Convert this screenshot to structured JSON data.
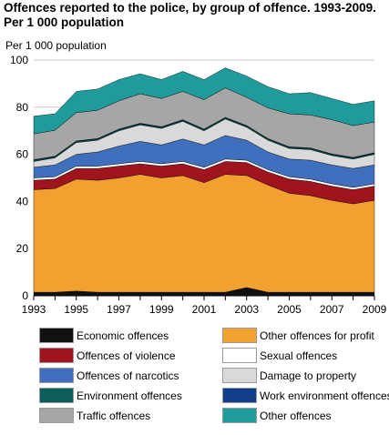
{
  "title_line1": "Offences reported to the police, by group of offence. 1993-2009.",
  "title_line2": "Per 1 000 population",
  "unit_label": "Per 1 000 population",
  "chart_data": {
    "type": "area",
    "stacked": true,
    "x": [
      1993,
      1994,
      1995,
      1996,
      1997,
      1998,
      1999,
      2000,
      2001,
      2002,
      2003,
      2004,
      2005,
      2006,
      2007,
      2008,
      2009
    ],
    "x_tick_labels": [
      "1993",
      "1995",
      "1997",
      "1999",
      "2001",
      "2003",
      "2005",
      "2007",
      "2009"
    ],
    "ylim": [
      0,
      100
    ],
    "y_ticks": [
      0,
      20,
      40,
      60,
      80,
      100
    ],
    "grid": true,
    "series": [
      {
        "name": "Economic offences",
        "color": "#111111",
        "values": [
          1.5,
          1.5,
          2,
          1.5,
          1.5,
          1.5,
          1.5,
          1.5,
          1.5,
          1.5,
          3.5,
          1.5,
          1.5,
          1.5,
          1.5,
          1.5,
          1.5
        ]
      },
      {
        "name": "Other offences for profit",
        "color": "#f2a131",
        "values": [
          43.5,
          44,
          47.5,
          47.5,
          48.5,
          50,
          48.5,
          49.5,
          46.5,
          50,
          47.5,
          45.5,
          42,
          41,
          39,
          37.5,
          39
        ]
      },
      {
        "name": "Offences of violence",
        "color": "#a0141e",
        "values": [
          4,
          4,
          4.5,
          5,
          5,
          4.5,
          5,
          5,
          5.5,
          5.5,
          5.5,
          5.5,
          6,
          6,
          6,
          6,
          6
        ]
      },
      {
        "name": "Sexual offences",
        "color": "#ffffff",
        "values": [
          1,
          1,
          1,
          1,
          1,
          1,
          1,
          1,
          1,
          1,
          1,
          1,
          1,
          1,
          1,
          1,
          1
        ]
      },
      {
        "name": "Offences of narcotics",
        "color": "#3f6fbd",
        "values": [
          4.5,
          5,
          5,
          6,
          7.5,
          8.5,
          8,
          9.5,
          9.5,
          10,
          8.5,
          7.5,
          7.5,
          8,
          8,
          8,
          8
        ]
      },
      {
        "name": "Damage to property",
        "color": "#d9d9d9",
        "values": [
          2.5,
          3,
          5,
          5,
          6.5,
          7,
          7,
          7.5,
          6,
          7,
          5.5,
          5,
          4.5,
          4.5,
          4,
          4,
          4.5
        ]
      },
      {
        "name": "Environment offences",
        "color": "#0c5e5a",
        "values": [
          0.5,
          0.5,
          0.5,
          0.5,
          0.5,
          0.5,
          0.5,
          0.5,
          0.5,
          0.5,
          0.5,
          0.5,
          0.5,
          0.5,
          0.5,
          0.5,
          0.5
        ]
      },
      {
        "name": "Work environment offences",
        "color": "#123f8c",
        "values": [
          0.2,
          0.2,
          0.2,
          0.2,
          0.2,
          0.2,
          0.2,
          0.2,
          0.2,
          0.2,
          0.2,
          0.2,
          0.2,
          0.2,
          0.2,
          0.2,
          0.2
        ]
      },
      {
        "name": "Traffic offences",
        "color": "#a6a6a6",
        "values": [
          11,
          11,
          12,
          12,
          12,
          12.5,
          12,
          12,
          12.5,
          12.5,
          12,
          13,
          14,
          14,
          14.5,
          13.5,
          13
        ]
      },
      {
        "name": "Other offences",
        "color": "#1f9b9b",
        "values": [
          7.5,
          7,
          9,
          9,
          9,
          8.5,
          8,
          8.5,
          8.5,
          8.5,
          9,
          9,
          8.5,
          9.5,
          9,
          9,
          9
        ]
      }
    ],
    "legend": {
      "placement": "bottom",
      "columns": [
        [
          "Economic offences",
          "Offences of violence",
          "Offences of narcotics",
          "Environment offences",
          "Traffic offences"
        ],
        [
          "Other offences for profit",
          "Sexual offences",
          "Damage to property",
          "Work environment offences",
          "Other offences"
        ]
      ]
    }
  }
}
